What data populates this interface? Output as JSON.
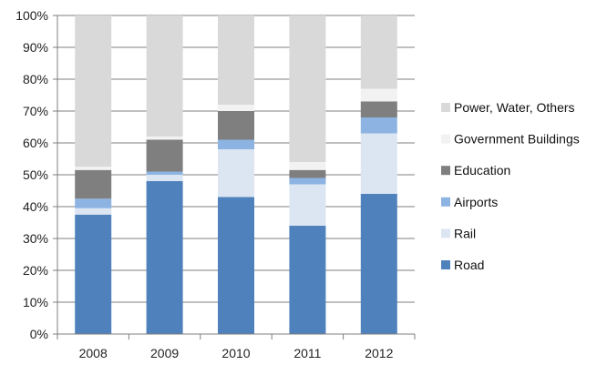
{
  "chart_data": {
    "type": "bar",
    "stacked": true,
    "percent": true,
    "title": "",
    "xlabel": "",
    "ylabel": "",
    "ylim": [
      0,
      100
    ],
    "grid": true,
    "legend_position": "right",
    "categories": [
      "2008",
      "2009",
      "2010",
      "2011",
      "2012"
    ],
    "y_ticks": [
      "0%",
      "10%",
      "20%",
      "30%",
      "40%",
      "50%",
      "60%",
      "70%",
      "80%",
      "90%",
      "100%"
    ],
    "series": [
      {
        "name": "Road",
        "color": "#4f81bd",
        "values": [
          37.5,
          48,
          43,
          34,
          44
        ]
      },
      {
        "name": "Rail",
        "color": "#dce6f2",
        "values": [
          2,
          2,
          15,
          13,
          19
        ]
      },
      {
        "name": "Airports",
        "color": "#8db3e2",
        "values": [
          3,
          1,
          3,
          2,
          5
        ]
      },
      {
        "name": "Education",
        "color": "#7f7f7f",
        "values": [
          9,
          10,
          9,
          2.5,
          5
        ]
      },
      {
        "name": "Government Buildings",
        "color": "#f2f2f2",
        "values": [
          1,
          1,
          2,
          2.5,
          4
        ]
      },
      {
        "name": "Power, Water, Others",
        "color": "#d9d9d9",
        "values": [
          47.5,
          38,
          28,
          46,
          23
        ]
      }
    ]
  }
}
